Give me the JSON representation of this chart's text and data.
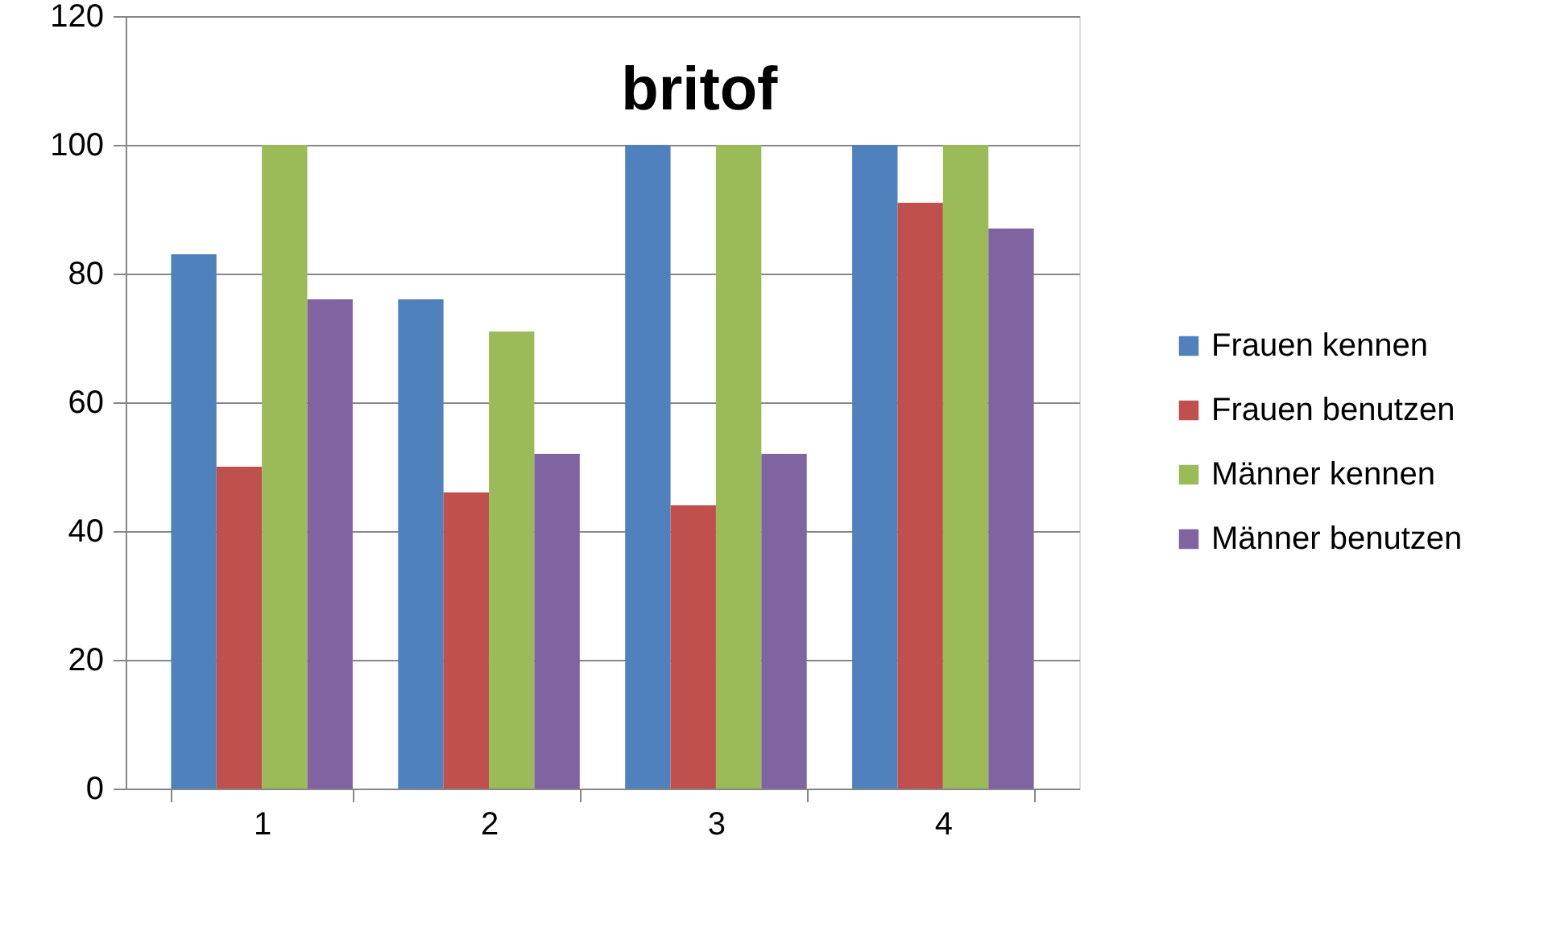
{
  "chart_data": {
    "type": "bar",
    "title": "britof",
    "categories": [
      "1",
      "2",
      "3",
      "4"
    ],
    "series": [
      {
        "name": "Frauen kennen",
        "color": "#4f81bd",
        "values": [
          83,
          76,
          100,
          100
        ]
      },
      {
        "name": "Frauen benutzen",
        "color": "#c0504d",
        "values": [
          50,
          46,
          44,
          91
        ]
      },
      {
        "name": "Männer kennen",
        "color": "#9bbb59",
        "values": [
          100,
          71,
          100,
          100
        ]
      },
      {
        "name": "Männer benutzen",
        "color": "#8064a2",
        "values": [
          76,
          52,
          52,
          87
        ]
      }
    ],
    "ylim": [
      0,
      120
    ],
    "yticks": [
      0,
      20,
      40,
      60,
      80,
      100,
      120
    ],
    "grid": "y",
    "legend": "right"
  }
}
